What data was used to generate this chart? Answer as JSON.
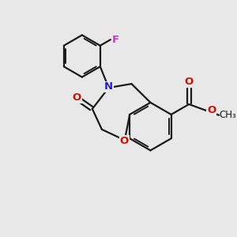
{
  "background_color": "#e8e8e8",
  "bond_color": "#1a1a1a",
  "nitrogen_color": "#2222cc",
  "oxygen_color": "#cc1100",
  "fluorine_color": "#cc33cc",
  "figsize": [
    3.0,
    3.0
  ],
  "dpi": 100,
  "xlim": [
    0,
    10
  ],
  "ylim": [
    0,
    10
  ],
  "lw": 1.6,
  "lw_inner": 1.4
}
